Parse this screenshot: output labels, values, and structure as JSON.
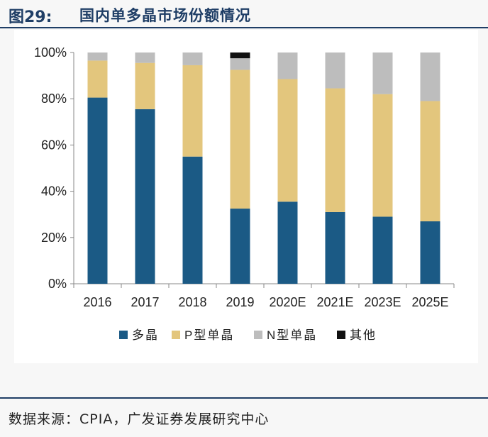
{
  "figure": {
    "number": "图29:",
    "title": "国内单多晶市场份额情况"
  },
  "source": "数据来源：CPIA，广发证券发展研究中心",
  "chart_data": {
    "type": "bar",
    "stacked": true,
    "categories": [
      "2016",
      "2017",
      "2018",
      "2019",
      "2020E",
      "2021E",
      "2023E",
      "2025E"
    ],
    "series": [
      {
        "name": "多晶",
        "color": "#1b5a85",
        "values": [
          80.5,
          75.5,
          55.0,
          32.5,
          35.5,
          31.0,
          29.0,
          27.0
        ]
      },
      {
        "name": "P型单晶",
        "color": "#e3c67d",
        "values": [
          16.0,
          20.0,
          39.5,
          60.0,
          53.0,
          53.5,
          53.0,
          52.0
        ]
      },
      {
        "name": "N型单晶",
        "color": "#bdbdbd",
        "values": [
          3.5,
          4.5,
          5.5,
          5.0,
          11.5,
          15.5,
          18.0,
          21.0
        ]
      },
      {
        "name": "其他",
        "color": "#111111",
        "values": [
          0,
          0,
          0,
          2.5,
          0,
          0,
          0,
          0
        ]
      }
    ],
    "ylim": [
      0,
      100
    ],
    "yticks": [
      "0%",
      "20%",
      "40%",
      "60%",
      "80%",
      "100%"
    ],
    "xlabel": "",
    "ylabel": "",
    "legend_position": "bottom",
    "grid": false
  }
}
